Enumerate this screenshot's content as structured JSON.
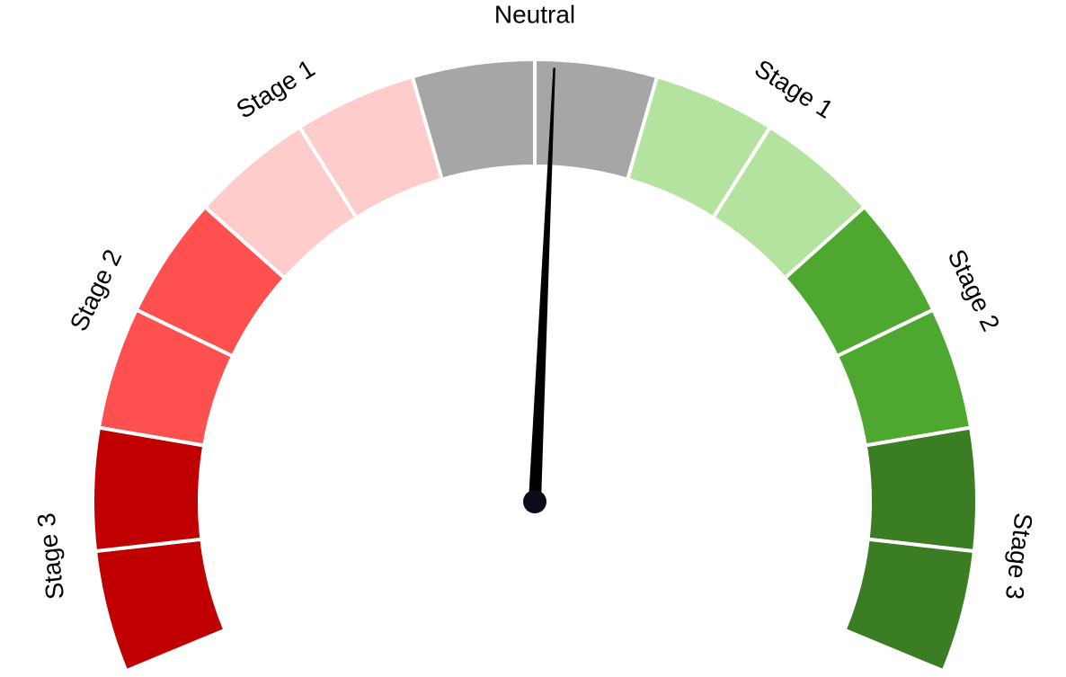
{
  "chart_data": {
    "type": "gauge",
    "range": [
      -7,
      7
    ],
    "value": 0.16,
    "needle_color": "#000000",
    "bands": [
      {
        "label": "Stage 3",
        "from": -7,
        "to": -5,
        "color": "#c00000"
      },
      {
        "label": "Stage 2",
        "from": -5,
        "to": -3,
        "color": "#ff5050"
      },
      {
        "label": "Stage 1",
        "from": -3,
        "to": -1,
        "color": "#ffcccc"
      },
      {
        "label": "Neutral",
        "from": -1,
        "to": 1,
        "color": "#a6a6a6"
      },
      {
        "label": "Stage 1",
        "from": 1,
        "to": 3,
        "color": "#b4e3a0"
      },
      {
        "label": "Stage 2",
        "from": 3,
        "to": 5,
        "color": "#4ea72e"
      },
      {
        "label": "Stage 3",
        "from": 5,
        "to": 7,
        "color": "#3a7d22"
      }
    ]
  }
}
